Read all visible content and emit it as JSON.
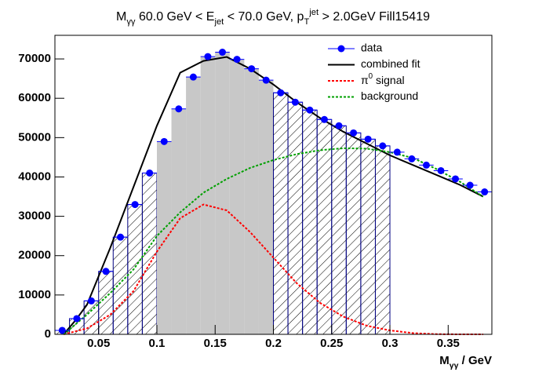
{
  "chart_data": {
    "type": "histogram",
    "title": [
      {
        "text": "M"
      },
      {
        "text": "γγ",
        "sub": true
      },
      {
        "text": " 60.0 GeV < E"
      },
      {
        "text": "jet",
        "sub": true
      },
      {
        "text": " < 70.0 GeV, p"
      },
      {
        "text": "T",
        "sub": true
      },
      {
        "text": "jet",
        "sup": true
      },
      {
        "text": " > 2.0GeV Fill15419"
      }
    ],
    "x_label": [
      {
        "text": "M"
      },
      {
        "text": "γγ",
        "sub": true
      },
      {
        "text": " / GeV"
      }
    ],
    "xlim": [
      0.0125,
      0.3875
    ],
    "ylim": [
      0,
      76000
    ],
    "xticks": [
      0.05,
      0.1,
      0.15,
      0.2,
      0.25,
      0.3,
      0.35
    ],
    "yticks": [
      0,
      10000,
      20000,
      30000,
      40000,
      50000,
      60000,
      70000
    ],
    "regions": [
      {
        "xlim": [
          0.0125,
          0.1
        ],
        "style": "hatch",
        "color": "#000080"
      },
      {
        "xlim": [
          0.1,
          0.2
        ],
        "style": "fill",
        "color": "#c8c8c8"
      },
      {
        "xlim": [
          0.2,
          0.3
        ],
        "style": "hatch",
        "color": "#000080"
      }
    ],
    "legend": "upper right",
    "series": [
      {
        "name": "data",
        "kind": "points",
        "color": "#0000ff",
        "x": [
          0.01875,
          0.03125,
          0.04375,
          0.05625,
          0.06875,
          0.08125,
          0.09375,
          0.10625,
          0.11875,
          0.13125,
          0.14375,
          0.15625,
          0.16875,
          0.18125,
          0.19375,
          0.20625,
          0.21875,
          0.23125,
          0.24375,
          0.25625,
          0.26875,
          0.28125,
          0.29375,
          0.30625,
          0.31875,
          0.33125,
          0.34375,
          0.35625,
          0.36875,
          0.38125
        ],
        "values": [
          1000,
          4000,
          8500,
          16000,
          24700,
          33000,
          41000,
          49000,
          57300,
          65400,
          70600,
          71700,
          69900,
          67500,
          64600,
          61400,
          59000,
          57000,
          54600,
          53000,
          51200,
          49600,
          47900,
          46300,
          44600,
          43000,
          41600,
          39500,
          37900,
          36200
        ]
      },
      {
        "name": "combined fit",
        "kind": "line",
        "dash": "none",
        "color": "#000000",
        "x": [
          0.02,
          0.03,
          0.04,
          0.06,
          0.08,
          0.1,
          0.12,
          0.14,
          0.16,
          0.18,
          0.2,
          0.22,
          0.24,
          0.26,
          0.28,
          0.3,
          0.32,
          0.34,
          0.36,
          0.38
        ],
        "values": [
          0,
          3500,
          7500,
          22000,
          37500,
          53000,
          66500,
          69500,
          70500,
          67500,
          63500,
          59000,
          55000,
          51500,
          48500,
          45500,
          43000,
          40500,
          38000,
          35000
        ]
      },
      {
        "name": "π0 signal",
        "label": [
          {
            "text": "π"
          },
          {
            "text": "0",
            "sup": true
          },
          {
            "text": " signal"
          }
        ],
        "kind": "line",
        "dash": "3,2",
        "color": "#ff0000",
        "x": [
          0.02,
          0.04,
          0.06,
          0.08,
          0.1,
          0.12,
          0.14,
          0.16,
          0.18,
          0.2,
          0.22,
          0.24,
          0.26,
          0.28,
          0.3,
          0.32,
          0.34,
          0.36,
          0.38
        ],
        "values": [
          0,
          1500,
          5000,
          11000,
          21000,
          29500,
          33000,
          31500,
          26000,
          19500,
          13000,
          8000,
          4500,
          2200,
          1000,
          300,
          50,
          0,
          0
        ]
      },
      {
        "name": "background",
        "kind": "line",
        "dash": "3,2",
        "color": "#00a000",
        "x": [
          0.02,
          0.04,
          0.06,
          0.08,
          0.1,
          0.12,
          0.14,
          0.16,
          0.18,
          0.2,
          0.22,
          0.24,
          0.26,
          0.28,
          0.3,
          0.32,
          0.34,
          0.36,
          0.38
        ],
        "values": [
          0,
          5000,
          10500,
          16500,
          25000,
          31000,
          36000,
          39500,
          42300,
          44300,
          45800,
          46800,
          47300,
          47200,
          46300,
          44800,
          42000,
          38800,
          35000
        ]
      }
    ]
  }
}
